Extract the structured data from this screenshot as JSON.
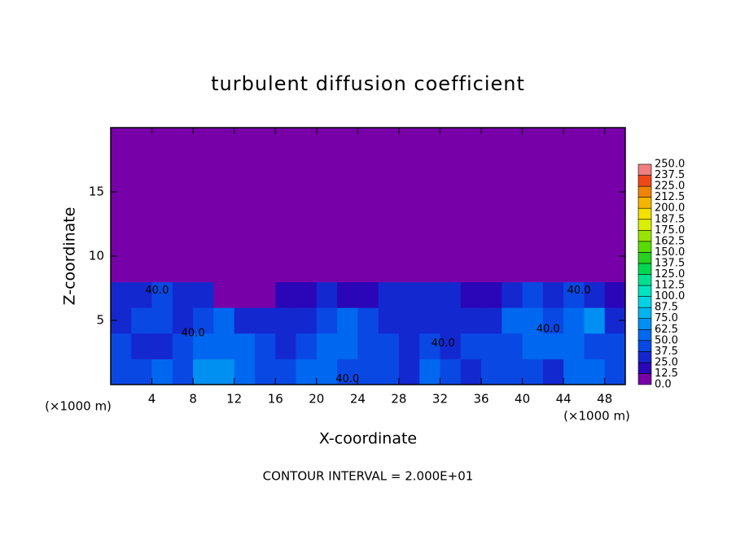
{
  "chart_data": {
    "type": "heatmap",
    "title": "turbulent diffusion coefficient",
    "xlabel": "X-coordinate",
    "ylabel": "Z-coordinate",
    "x_unit": "(×1000 m)",
    "footnote": "CONTOUR INTERVAL = 2.000E+01",
    "xlim": [
      0,
      50
    ],
    "ylim": [
      0,
      20
    ],
    "xticks": [
      4,
      8,
      12,
      16,
      20,
      24,
      28,
      32,
      36,
      40,
      44,
      48
    ],
    "yticks": [
      5,
      10,
      15
    ],
    "x": [
      1,
      3,
      5,
      7,
      9,
      11,
      13,
      15,
      17,
      19,
      21,
      23,
      25,
      27,
      29,
      31,
      33,
      35,
      37,
      39,
      41,
      43,
      45,
      47,
      49
    ],
    "y": [
      1,
      3,
      5,
      7,
      9,
      11,
      13,
      15,
      17,
      19
    ],
    "z": [
      [
        45,
        40,
        50,
        45,
        65,
        70,
        55,
        45,
        40,
        50,
        60,
        45,
        40,
        45,
        35,
        50,
        40,
        35,
        40,
        45,
        40,
        35,
        55,
        50,
        40
      ],
      [
        40,
        35,
        30,
        40,
        55,
        60,
        50,
        40,
        35,
        40,
        50,
        55,
        45,
        40,
        35,
        40,
        35,
        40,
        40,
        45,
        50,
        55,
        60,
        45,
        40
      ],
      [
        35,
        40,
        45,
        35,
        45,
        50,
        35,
        30,
        30,
        35,
        40,
        50,
        40,
        35,
        35,
        30,
        30,
        35,
        35,
        50,
        55,
        45,
        50,
        65,
        35
      ],
      [
        25,
        30,
        40,
        30,
        25,
        10,
        5,
        5,
        20,
        15,
        25,
        20,
        20,
        30,
        35,
        35,
        30,
        20,
        20,
        25,
        40,
        35,
        45,
        30,
        20
      ],
      [
        0,
        0,
        0,
        0,
        0,
        0,
        0,
        0,
        0,
        0,
        0,
        0,
        0,
        0,
        5,
        10,
        5,
        0,
        0,
        0,
        0,
        0,
        0,
        0,
        0
      ],
      [
        0,
        0,
        0,
        0,
        0,
        0,
        0,
        0,
        0,
        0,
        0,
        0,
        0,
        0,
        0,
        0,
        0,
        0,
        0,
        0,
        0,
        0,
        0,
        0,
        0
      ],
      [
        0,
        0,
        0,
        0,
        0,
        0,
        0,
        0,
        0,
        0,
        0,
        0,
        0,
        0,
        0,
        0,
        0,
        0,
        0,
        0,
        0,
        0,
        0,
        0,
        0
      ],
      [
        0,
        0,
        0,
        0,
        0,
        0,
        0,
        0,
        0,
        0,
        0,
        0,
        0,
        0,
        0,
        0,
        0,
        0,
        0,
        0,
        0,
        0,
        0,
        0,
        0
      ],
      [
        0,
        0,
        0,
        0,
        0,
        0,
        0,
        0,
        0,
        0,
        0,
        0,
        0,
        0,
        0,
        0,
        0,
        0,
        0,
        0,
        0,
        0,
        0,
        0,
        0
      ],
      [
        0,
        0,
        0,
        0,
        0,
        0,
        0,
        0,
        0,
        0,
        0,
        0,
        0,
        0,
        0,
        0,
        0,
        0,
        0,
        0,
        0,
        0,
        0,
        0,
        0
      ]
    ],
    "contour_labels": [
      {
        "text": "40.0",
        "x": 4.5,
        "y": 7.3
      },
      {
        "text": "40.0",
        "x": 8,
        "y": 4
      },
      {
        "text": "40.0",
        "x": 23,
        "y": 0.4
      },
      {
        "text": "40.0",
        "x": 32.3,
        "y": 3.2
      },
      {
        "text": "40.0",
        "x": 42.5,
        "y": 4.3
      },
      {
        "text": "40.0",
        "x": 45.5,
        "y": 7.3
      }
    ],
    "colorbar": {
      "ticks": [
        {
          "value": 0,
          "label": "0.0"
        },
        {
          "value": 12.5,
          "label": "12.5"
        },
        {
          "value": 25,
          "label": "25.0"
        },
        {
          "value": 37.5,
          "label": "37.5"
        },
        {
          "value": 50,
          "label": "50.0"
        },
        {
          "value": 62.5,
          "label": "62.5"
        },
        {
          "value": 75,
          "label": "75.0"
        },
        {
          "value": 87.5,
          "label": "87.5"
        },
        {
          "value": 100,
          "label": "100.0"
        },
        {
          "value": 112.5,
          "label": "112.5"
        },
        {
          "value": 125,
          "label": "125.0"
        },
        {
          "value": 137.5,
          "label": "137.5"
        },
        {
          "value": 150,
          "label": "150.0"
        },
        {
          "value": 162.5,
          "label": "162.5"
        },
        {
          "value": 175,
          "label": "175.0"
        },
        {
          "value": 187.5,
          "label": "187.5"
        },
        {
          "value": 200,
          "label": "200.0"
        },
        {
          "value": 212.5,
          "label": "212.5"
        },
        {
          "value": 225,
          "label": "225.0"
        },
        {
          "value": 237.5,
          "label": "237.5"
        },
        {
          "value": 250,
          "label": "250.0"
        }
      ],
      "colors": [
        "#7800a8",
        "#2a06b8",
        "#1428d0",
        "#0a48e4",
        "#0068f0",
        "#0090f2",
        "#00b4f0",
        "#00d4e4",
        "#00e4c0",
        "#00e090",
        "#00d850",
        "#28d020",
        "#58dc00",
        "#98e400",
        "#d8f000",
        "#f4e000",
        "#f4b400",
        "#f08400",
        "#f04818",
        "#f08080"
      ]
    }
  }
}
